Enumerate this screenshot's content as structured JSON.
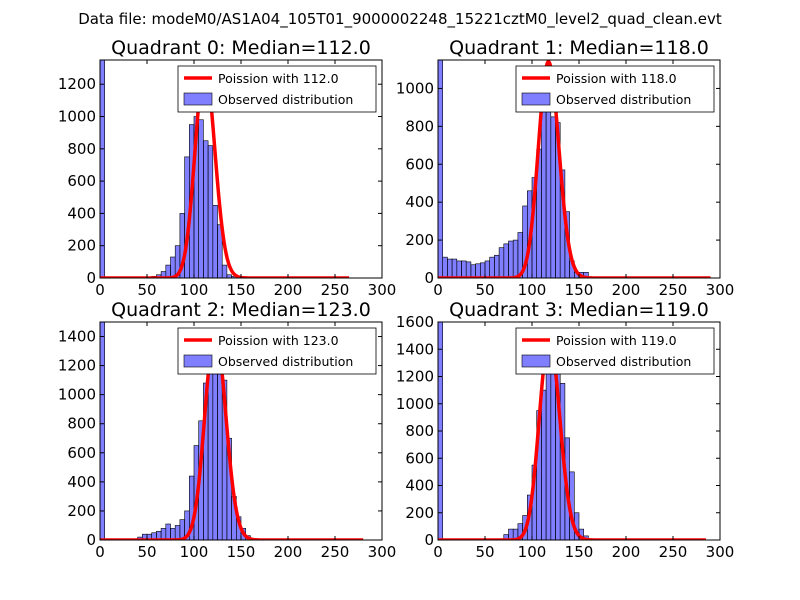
{
  "figure_title": "Data file: modeM0/AS1A04_105T01_9000002248_15221cztM0_level2_quad_clean.evt",
  "colors": {
    "poisson": "#ff0000",
    "bars": "#0000ff",
    "bar_alpha": "0.5"
  },
  "chart_data": [
    {
      "type": "bar",
      "title": "Quadrant 0: Median=112.0",
      "legend": [
        "Poission with 112.0",
        "Observed distribution"
      ],
      "legend_position": "top-right",
      "xlim": [
        0,
        300
      ],
      "ylim": [
        0,
        1350
      ],
      "xticks": [
        0,
        50,
        100,
        150,
        200,
        250,
        300
      ],
      "yticks": [
        0,
        200,
        400,
        600,
        800,
        1000,
        1200
      ],
      "median": 112,
      "poisson_peak": 1300,
      "poisson_xmax": 265,
      "hist_x": [
        0,
        55,
        60,
        65,
        70,
        75,
        80,
        85,
        90,
        95,
        100,
        105,
        110,
        115,
        120,
        125,
        130,
        135,
        140,
        145
      ],
      "hist_y": [
        1350,
        10,
        20,
        40,
        80,
        130,
        200,
        400,
        750,
        950,
        1000,
        980,
        850,
        820,
        450,
        330,
        80,
        20,
        10,
        5
      ],
      "bin_width": 5
    },
    {
      "type": "bar",
      "title": "Quadrant 1: Median=118.0",
      "legend": [
        "Poission with 118.0",
        "Observed distribution"
      ],
      "legend_position": "top-right",
      "xlim": [
        0,
        300
      ],
      "ylim": [
        0,
        1150
      ],
      "xticks": [
        0,
        50,
        100,
        150,
        200,
        250,
        300
      ],
      "yticks": [
        0,
        200,
        400,
        600,
        800,
        1000
      ],
      "median": 118,
      "poisson_peak": 1140,
      "poisson_xmax": 290,
      "hist_x": [
        0,
        5,
        10,
        15,
        20,
        25,
        30,
        35,
        40,
        45,
        50,
        55,
        60,
        65,
        70,
        75,
        80,
        85,
        90,
        95,
        100,
        105,
        110,
        115,
        120,
        125,
        130,
        135,
        140,
        145,
        150,
        155
      ],
      "hist_y": [
        1150,
        110,
        100,
        100,
        90,
        90,
        85,
        70,
        75,
        80,
        90,
        110,
        120,
        160,
        180,
        195,
        200,
        240,
        380,
        460,
        530,
        680,
        1000,
        1080,
        850,
        820,
        570,
        350,
        90,
        30,
        30,
        30
      ],
      "bin_width": 5
    },
    {
      "type": "bar",
      "title": "Quadrant 2: Median=123.0",
      "legend": [
        "Poission with 123.0",
        "Observed distribution"
      ],
      "legend_position": "top-right",
      "xlim": [
        0,
        300
      ],
      "ylim": [
        0,
        1500
      ],
      "xticks": [
        0,
        50,
        100,
        150,
        200,
        250,
        300
      ],
      "yticks": [
        0,
        200,
        400,
        600,
        800,
        1000,
        1200,
        1400
      ],
      "median": 123,
      "poisson_peak": 1430,
      "poisson_xmax": 280,
      "hist_x": [
        0,
        40,
        45,
        50,
        55,
        60,
        65,
        70,
        75,
        80,
        85,
        90,
        95,
        100,
        105,
        110,
        115,
        120,
        125,
        130,
        135,
        140,
        145,
        150,
        155
      ],
      "hist_y": [
        1500,
        20,
        40,
        40,
        50,
        60,
        80,
        110,
        80,
        100,
        140,
        200,
        440,
        650,
        820,
        1080,
        1150,
        1350,
        1280,
        1100,
        700,
        300,
        160,
        80,
        30
      ],
      "bin_width": 5
    },
    {
      "type": "bar",
      "title": "Quadrant 3: Median=119.0",
      "legend": [
        "Poission with 119.0",
        "Observed distribution"
      ],
      "legend_position": "top-right",
      "xlim": [
        0,
        300
      ],
      "ylim": [
        0,
        1600
      ],
      "xticks": [
        0,
        50,
        100,
        150,
        200,
        250,
        300
      ],
      "yticks": [
        0,
        200,
        400,
        600,
        800,
        1000,
        1200,
        1400,
        1600
      ],
      "median": 119,
      "poisson_peak": 1480,
      "poisson_xmax": 285,
      "hist_x": [
        0,
        70,
        75,
        80,
        85,
        90,
        95,
        100,
        105,
        110,
        115,
        120,
        125,
        130,
        135,
        140,
        145,
        150,
        155
      ],
      "hist_y": [
        1600,
        40,
        80,
        80,
        120,
        180,
        330,
        550,
        950,
        1100,
        1300,
        1500,
        1380,
        1150,
        750,
        500,
        200,
        80,
        30
      ],
      "bin_width": 5
    }
  ]
}
